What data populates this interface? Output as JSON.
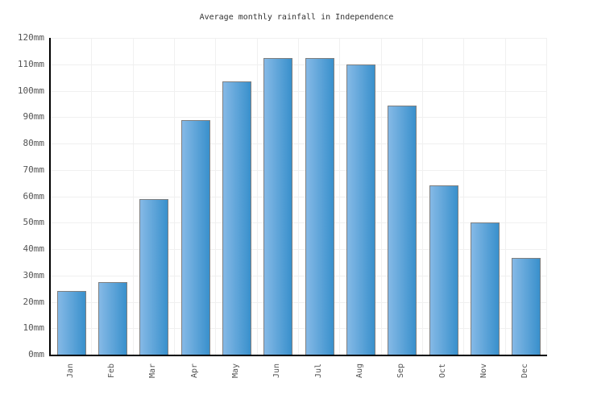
{
  "chart_data": {
    "type": "bar",
    "title": "Average monthly rainfall in Independence",
    "categories": [
      "Jan",
      "Feb",
      "Mar",
      "Apr",
      "May",
      "Jun",
      "Jul",
      "Aug",
      "Sep",
      "Oct",
      "Nov",
      "Dec"
    ],
    "values": [
      24,
      27.5,
      59,
      89,
      103.5,
      112.5,
      112.5,
      110,
      94.5,
      64,
      50,
      36.5
    ],
    "unit": "mm",
    "xlabel": "",
    "ylabel": "",
    "ylim": [
      0,
      120
    ],
    "ytick_step": 10,
    "ytick_labels": [
      "0mm",
      "10mm",
      "20mm",
      "30mm",
      "40mm",
      "50mm",
      "60mm",
      "70mm",
      "80mm",
      "90mm",
      "100mm",
      "110mm",
      "120mm"
    ],
    "grid": true,
    "legend": "none",
    "styles": {
      "bar_gradient_left": "#85b9e6",
      "bar_gradient_right": "#3990cc",
      "bar_border": "#7f7f7f",
      "grid_color": "#f0f0f0",
      "axis_color": "#000000",
      "tick_label_color": "#555555",
      "title_color": "#333333",
      "background": "#ffffff"
    }
  }
}
